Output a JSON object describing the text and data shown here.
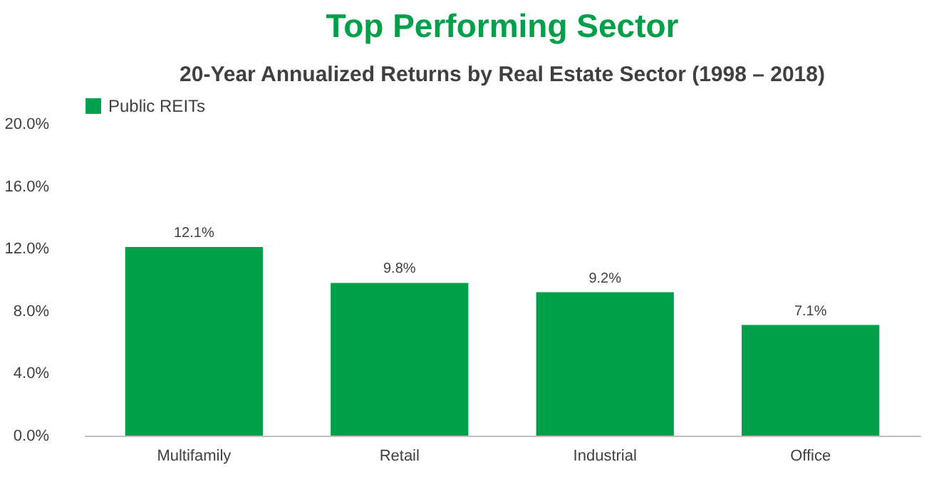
{
  "chart_data": {
    "type": "bar",
    "title": "Top Performing Sector",
    "subtitle": "20-Year Annualized Returns by Real Estate Sector (1998 – 2018)",
    "categories": [
      "Multifamily",
      "Retail",
      "Industrial",
      "Office"
    ],
    "series": [
      {
        "name": "Public REITs",
        "color": "#00a04b",
        "values": [
          12.1,
          9.8,
          9.2,
          7.1
        ],
        "value_labels": [
          "12.1%",
          "9.8%",
          "9.2%",
          "7.1%"
        ]
      }
    ],
    "ylim": [
      0,
      20
    ],
    "yticks": [
      {
        "value": 0,
        "label": "0.0%"
      },
      {
        "value": 4,
        "label": "4.0%"
      },
      {
        "value": 8,
        "label": "8.0%"
      },
      {
        "value": 12,
        "label": "12.0%"
      },
      {
        "value": 16,
        "label": "16.0%"
      },
      {
        "value": 20,
        "label": "20.0%"
      }
    ],
    "grid": false,
    "legend": "top"
  }
}
